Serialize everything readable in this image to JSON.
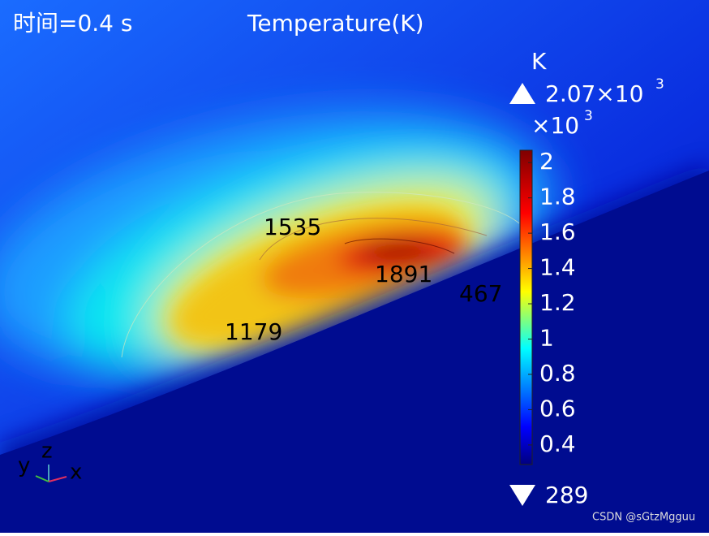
{
  "header": {
    "time_label": "时间=0.4 s",
    "title": "Temperature(K)"
  },
  "colorbar": {
    "unit": "K",
    "max_label": "2.07×10",
    "max_exponent": "3",
    "scale_label": "×10",
    "scale_exponent": "3",
    "clim": [
      0.289,
      2.07
    ],
    "ticks": [
      2,
      1.8,
      1.6,
      1.4,
      1.2,
      1,
      0.8,
      0.6,
      0.4
    ],
    "min_label": "289"
  },
  "contour_labels": [
    "1535",
    "1891",
    "467",
    "1179"
  ],
  "axes": {
    "y": "y",
    "z": "z",
    "x": "x"
  },
  "watermark": "CSDN @sGtzMgguu"
}
